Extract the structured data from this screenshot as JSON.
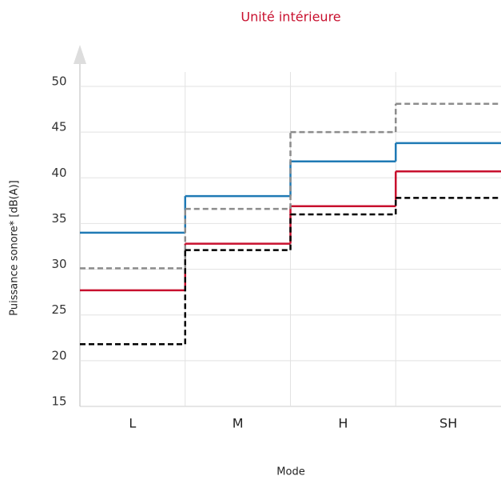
{
  "chart_data": {
    "type": "step",
    "title": "Unité intérieure",
    "xlabel": "Mode",
    "ylabel": "Puissance sonore* [dB(A)]",
    "categories": [
      "L",
      "M",
      "H",
      "SH"
    ],
    "series": [
      {
        "color": "#1f7ab5",
        "dash": false,
        "values": [
          34,
          38,
          41.8,
          43.8
        ]
      },
      {
        "color": "#c8102e",
        "dash": false,
        "values": [
          27.7,
          32.8,
          36.9,
          40.7
        ]
      },
      {
        "color": "#8c8c8c",
        "dash": true,
        "values": [
          30.1,
          36.6,
          45,
          48.1
        ]
      },
      {
        "color": "#000000",
        "dash": true,
        "values": [
          21.8,
          32.1,
          36,
          37.8
        ]
      }
    ],
    "ylim": [
      15,
      50
    ],
    "yticks": [
      15,
      20,
      25,
      30,
      35,
      40,
      45,
      50
    ],
    "grid": true
  }
}
